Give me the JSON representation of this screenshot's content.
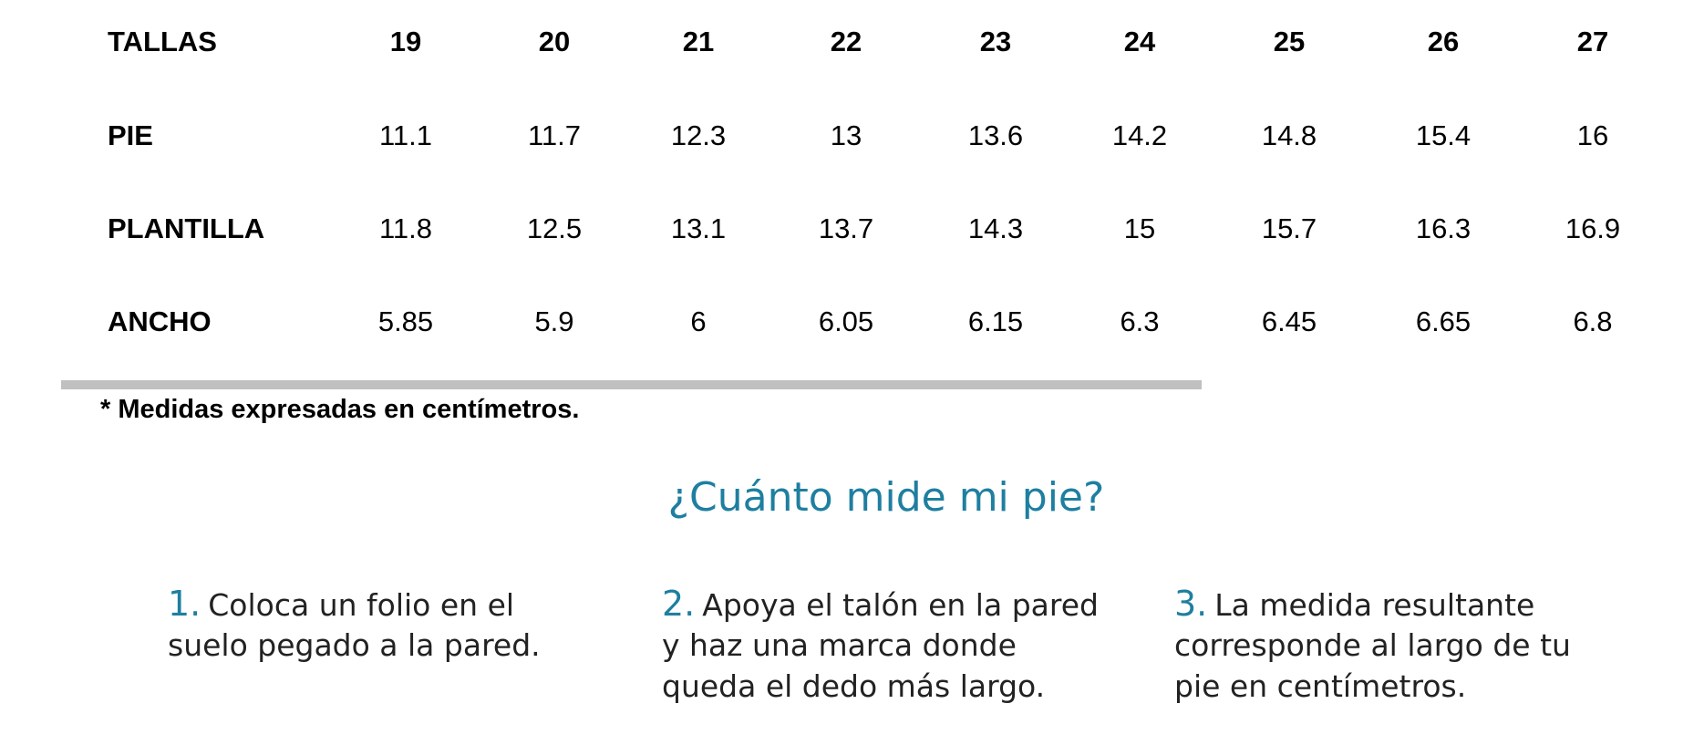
{
  "table": {
    "header": [
      "TALLAS",
      19,
      20,
      21,
      22,
      23,
      24,
      25,
      26,
      27
    ],
    "rows": [
      [
        "PIE",
        11.1,
        11.7,
        12.3,
        13,
        13.6,
        14.2,
        14.8,
        15.4,
        16
      ],
      [
        "PLANTILLA",
        11.8,
        12.5,
        13.1,
        13.7,
        14.3,
        15,
        15.7,
        16.3,
        16.9
      ],
      [
        "ANCHO",
        5.85,
        5.9,
        6,
        6.05,
        6.15,
        6.3,
        6.45,
        6.65,
        6.8
      ]
    ]
  },
  "footnote": "* Medidas expresadas en centímetros.",
  "heading": "¿Cuánto mide mi pie?",
  "steps": [
    {
      "number": "1.",
      "lines": [
        "Coloca un folio en el",
        "suelo pegado a la pared."
      ]
    },
    {
      "number": "2.",
      "lines": [
        "Apoya el talón en la pared",
        "y haz una marca donde",
        "queda el dedo más largo."
      ]
    },
    {
      "number": "3.",
      "lines": [
        "La medida resultante",
        "corresponde al largo de tu",
        "pie en centímetros."
      ]
    }
  ]
}
